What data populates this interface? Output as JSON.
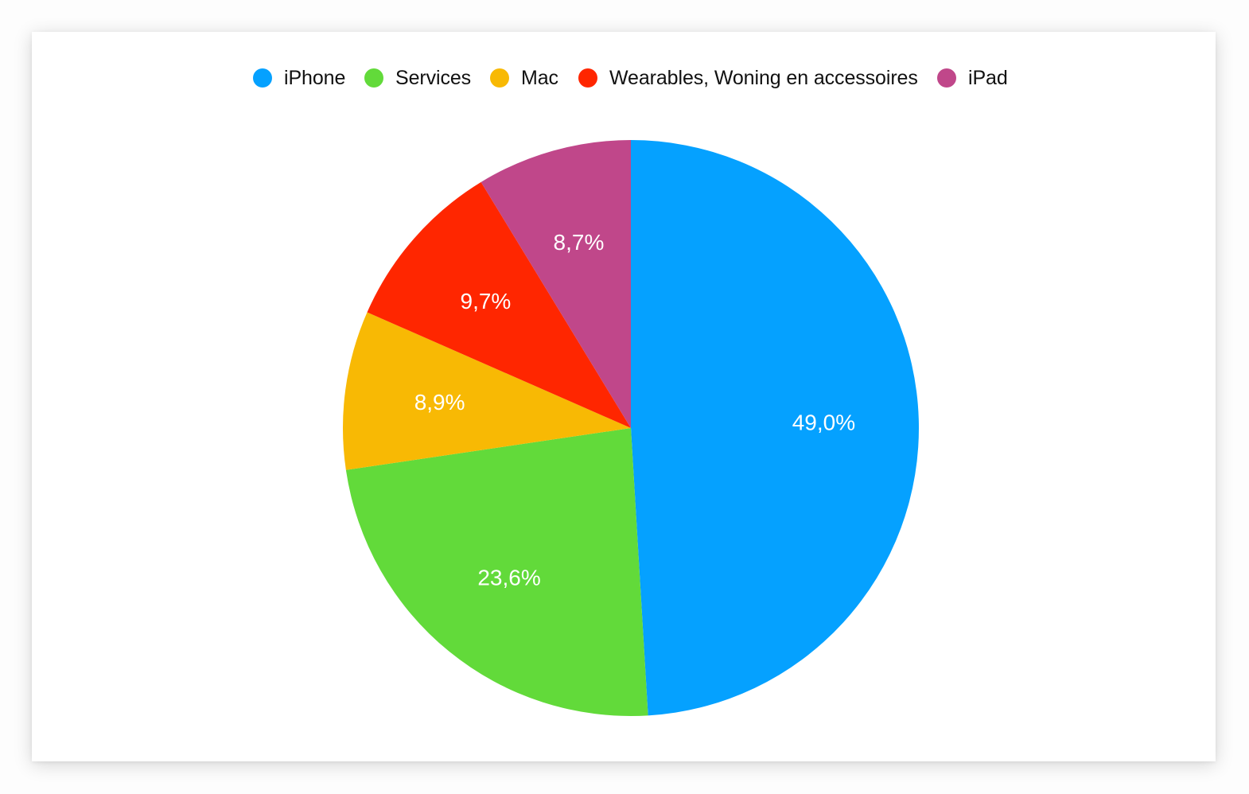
{
  "chart_data": {
    "type": "pie",
    "title": "",
    "categories": [
      "iPhone",
      "Services",
      "Mac",
      "Wearables, Woning en accessoires",
      "iPad"
    ],
    "values": [
      49.0,
      23.6,
      8.9,
      9.7,
      8.7
    ],
    "data_labels": [
      "49,0%",
      "23,6%",
      "8,9%",
      "9,7%",
      "8,7%"
    ],
    "colors": [
      "#05a1ff",
      "#62da3a",
      "#f8b904",
      "#ff2600",
      "#c0478a"
    ],
    "start_angle": "12 o'clock",
    "direction": "clockwise",
    "legend_position": "top-center"
  }
}
